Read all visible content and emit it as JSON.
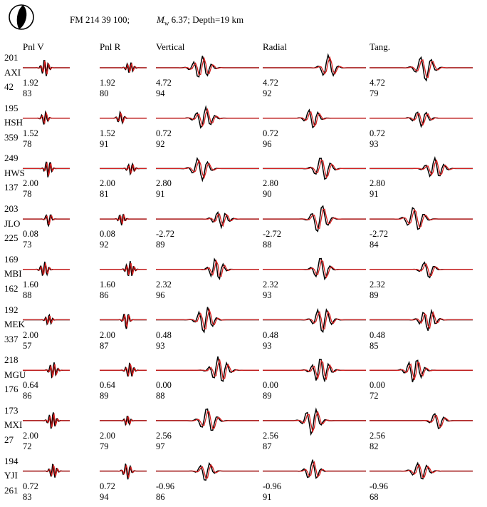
{
  "header": {
    "focal_mechanism": "FM 214 39 100;",
    "magnitude_symbol": "M",
    "magnitude_subscript": "w",
    "magnitude_rest": " 6.37; Depth=19 km",
    "beachball": "focal-mechanism-beachball-icon"
  },
  "columns": [
    "Pnl V",
    "Pnl R",
    "Vertical",
    "Radial",
    "Tang."
  ],
  "colors": {
    "observed": "#000000",
    "synthetic": "#d62020"
  },
  "stations": [
    {
      "distance": "201",
      "name": "AXI",
      "azimuth": "42",
      "shifts": [
        "1.92",
        "1.92",
        "4.72",
        "4.72",
        "4.72"
      ],
      "correlations": [
        "83",
        "80",
        "94",
        "92",
        "79"
      ]
    },
    {
      "distance": "195",
      "name": "HSH",
      "azimuth": "359",
      "shifts": [
        "1.52",
        "1.52",
        "0.72",
        "0.72",
        "0.72"
      ],
      "correlations": [
        "78",
        "91",
        "92",
        "96",
        "93"
      ]
    },
    {
      "distance": "249",
      "name": "HWS",
      "azimuth": "137",
      "shifts": [
        "2.00",
        "2.00",
        "2.80",
        "2.80",
        "2.80"
      ],
      "correlations": [
        "78",
        "81",
        "91",
        "90",
        "91"
      ]
    },
    {
      "distance": "203",
      "name": "JLO",
      "azimuth": "225",
      "shifts": [
        "0.08",
        "0.08",
        "-2.72",
        "-2.72",
        "-2.72"
      ],
      "correlations": [
        "73",
        "92",
        "89",
        "88",
        "84"
      ]
    },
    {
      "distance": "169",
      "name": "MBI",
      "azimuth": "162",
      "shifts": [
        "1.60",
        "1.60",
        "2.32",
        "2.32",
        "2.32"
      ],
      "correlations": [
        "88",
        "86",
        "96",
        "93",
        "89"
      ]
    },
    {
      "distance": "192",
      "name": "MEK",
      "azimuth": "337",
      "shifts": [
        "2.00",
        "2.00",
        "0.48",
        "0.48",
        "0.48"
      ],
      "correlations": [
        "57",
        "87",
        "93",
        "93",
        "85"
      ]
    },
    {
      "distance": "218",
      "name": "MGU",
      "azimuth": "176",
      "shifts": [
        "0.64",
        "0.64",
        "0.00",
        "0.00",
        "0.00"
      ],
      "correlations": [
        "86",
        "89",
        "88",
        "89",
        "72"
      ]
    },
    {
      "distance": "173",
      "name": "MXI",
      "azimuth": "27",
      "shifts": [
        "2.00",
        "2.00",
        "2.56",
        "2.56",
        "2.56"
      ],
      "correlations": [
        "72",
        "79",
        "97",
        "87",
        "82"
      ]
    },
    {
      "distance": "194",
      "name": "YJI",
      "azimuth": "261",
      "shifts": [
        "0.72",
        "0.72",
        "-0.96",
        "-0.96",
        "-0.96"
      ],
      "correlations": [
        "83",
        "94",
        "86",
        "91",
        "68"
      ]
    }
  ]
}
